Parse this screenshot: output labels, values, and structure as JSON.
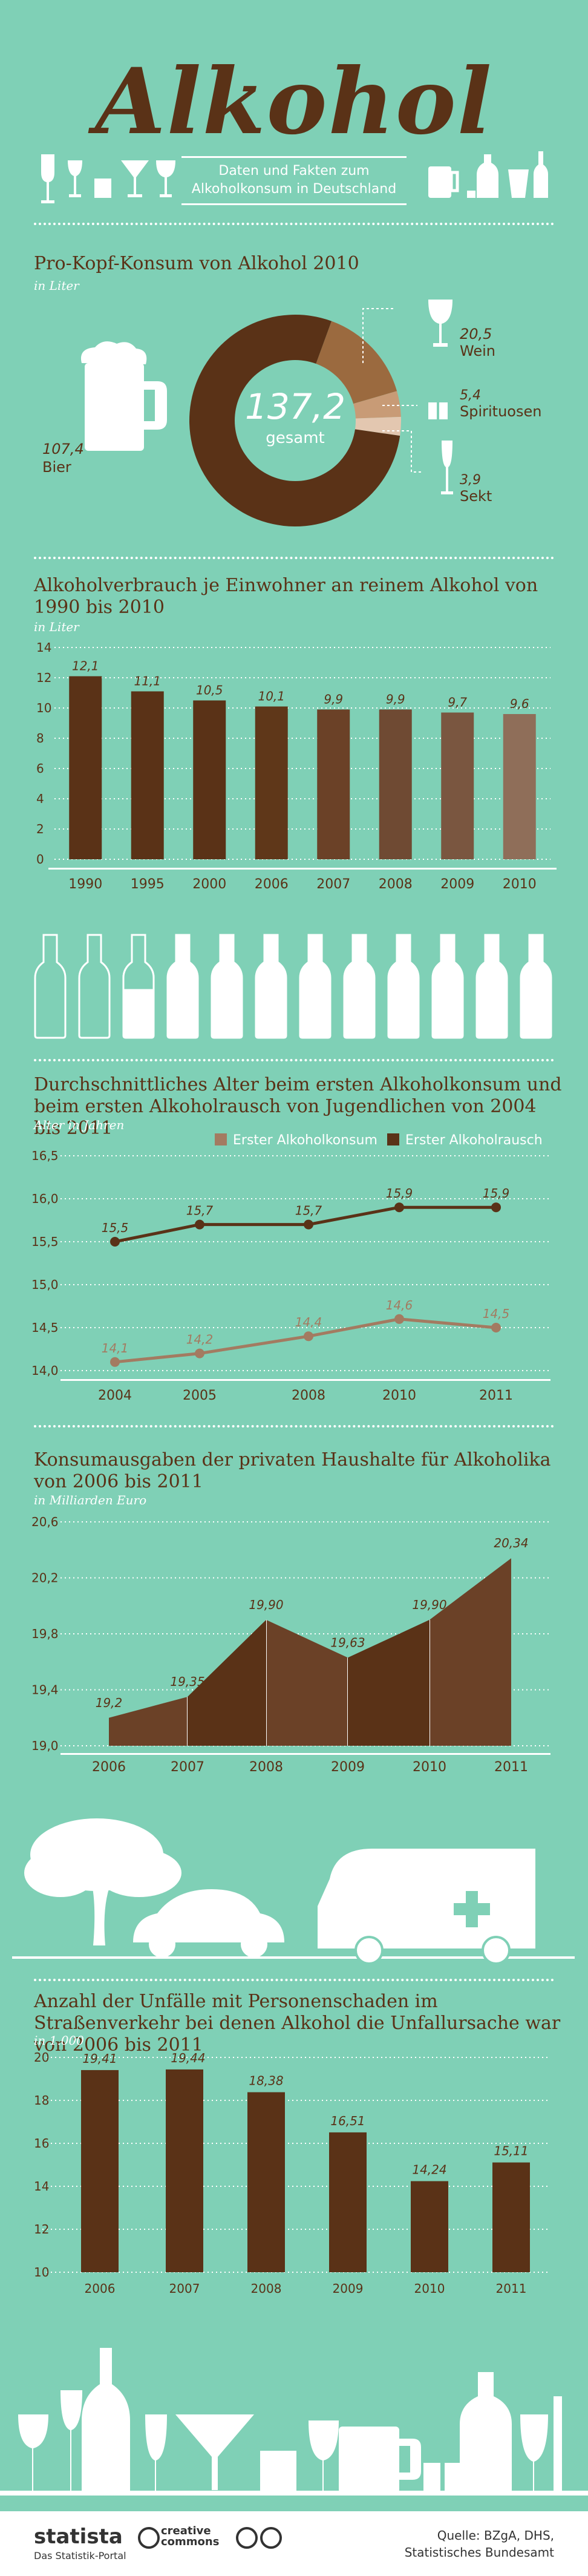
{
  "header": {
    "title": "Alkohol",
    "subtitle_line1": "Daten und Fakten zum",
    "subtitle_line2": "Alkoholkonsum in Deutschland"
  },
  "section1": {
    "title": "Pro-Kopf-Konsum von Alkohol 2010",
    "unit": "in Liter",
    "total": "137,2",
    "total_label": "gesamt",
    "chart_data": {
      "type": "pie",
      "categories": [
        "Bier",
        "Wein",
        "Spirituosen",
        "Sekt"
      ],
      "values": [
        107.4,
        20.5,
        5.4,
        3.9
      ],
      "value_labels": [
        "107,4",
        "20,5",
        "5,4",
        "3,9"
      ],
      "colors": [
        "#5a3217",
        "#9b6a3f",
        "#c89b76",
        "#e3c7b0"
      ]
    }
  },
  "section2": {
    "title": "Alkoholverbrauch je Einwohner an reinem Alkohol von 1990 bis 2010",
    "unit": "in Liter",
    "chart_data": {
      "type": "bar",
      "categories": [
        "1990",
        "1995",
        "2000",
        "2006",
        "2007",
        "2008",
        "2009",
        "2010"
      ],
      "values": [
        12.1,
        11.1,
        10.5,
        10.1,
        9.9,
        9.9,
        9.7,
        9.6
      ],
      "value_labels": [
        "12,1",
        "11,1",
        "10,5",
        "10,1",
        "9,9",
        "9,9",
        "9,7",
        "9,6"
      ],
      "ylim": [
        0,
        14
      ],
      "yticks": [
        "0",
        "2",
        "4",
        "6",
        "8",
        "10",
        "12",
        "14"
      ]
    }
  },
  "section3": {
    "title": "Durchschnittliches Alter beim ersten Alkoholkonsum und beim ersten Alkoholrausch von Jugendlichen von 2004 bis 2011",
    "unit": "Alter in Jahren",
    "chart_data": {
      "type": "line",
      "categories": [
        "2004",
        "2005",
        "2008",
        "2010",
        "2011"
      ],
      "series": [
        {
          "name": "Erster Alkoholkonsum",
          "values": [
            14.1,
            14.2,
            14.4,
            14.6,
            14.5
          ],
          "labels": [
            "14,1",
            "14,2",
            "14,4",
            "14,6",
            "14,5"
          ],
          "color": "#a37b61"
        },
        {
          "name": "Erster Alkoholrausch",
          "values": [
            15.5,
            15.7,
            15.7,
            15.9,
            15.9
          ],
          "labels": [
            "15,5",
            "15,7",
            "15,7",
            "15,9",
            "15,9"
          ],
          "color": "#5a3217"
        }
      ],
      "yticks": [
        "14,0",
        "14,5",
        "15,0",
        "15,5",
        "16,0",
        "16,5"
      ],
      "ylim": [
        14.0,
        16.5
      ]
    }
  },
  "section4": {
    "title": "Konsumausgaben der privaten Haushalte für Alkoholika von 2006 bis 2011",
    "unit": "in Milliarden Euro",
    "chart_data": {
      "type": "area",
      "categories": [
        "2006",
        "2007",
        "2008",
        "2009",
        "2010",
        "2011"
      ],
      "values": [
        19.2,
        19.35,
        19.9,
        19.63,
        19.9,
        20.34
      ],
      "value_labels": [
        "19,2",
        "19,35",
        "19,90",
        "19,63",
        "19,90",
        "20,34"
      ],
      "ylim": [
        19.0,
        20.6
      ],
      "yticks": [
        "19,0",
        "19,4",
        "19,8",
        "20,2",
        "20,6"
      ]
    }
  },
  "section5": {
    "title": "Anzahl der Unfälle mit Personenschaden im Straßenverkehr bei denen Alkohol die Unfallursache war von 2006 bis 2011",
    "unit": "in 1.000",
    "chart_data": {
      "type": "bar",
      "categories": [
        "2006",
        "2007",
        "2008",
        "2009",
        "2010",
        "2011"
      ],
      "values": [
        19.41,
        19.44,
        18.38,
        16.51,
        14.24,
        15.11
      ],
      "value_labels": [
        "19,41",
        "19,44",
        "18,38",
        "16,51",
        "14,24",
        "15,11"
      ],
      "ylim": [
        10,
        20
      ],
      "yticks": [
        "10",
        "12",
        "14",
        "16",
        "18",
        "20"
      ]
    }
  },
  "footer": {
    "brand": "statista",
    "brand_sub": "Das Statistik-Portal",
    "cc": "creative commons",
    "source_line1": "Quelle: BZgA, DHS,",
    "source_line2": "Statistisches Bundesamt"
  },
  "colors": {
    "background": "#7fd0b6",
    "brown": "#5a3217",
    "white": "#ffffff"
  }
}
